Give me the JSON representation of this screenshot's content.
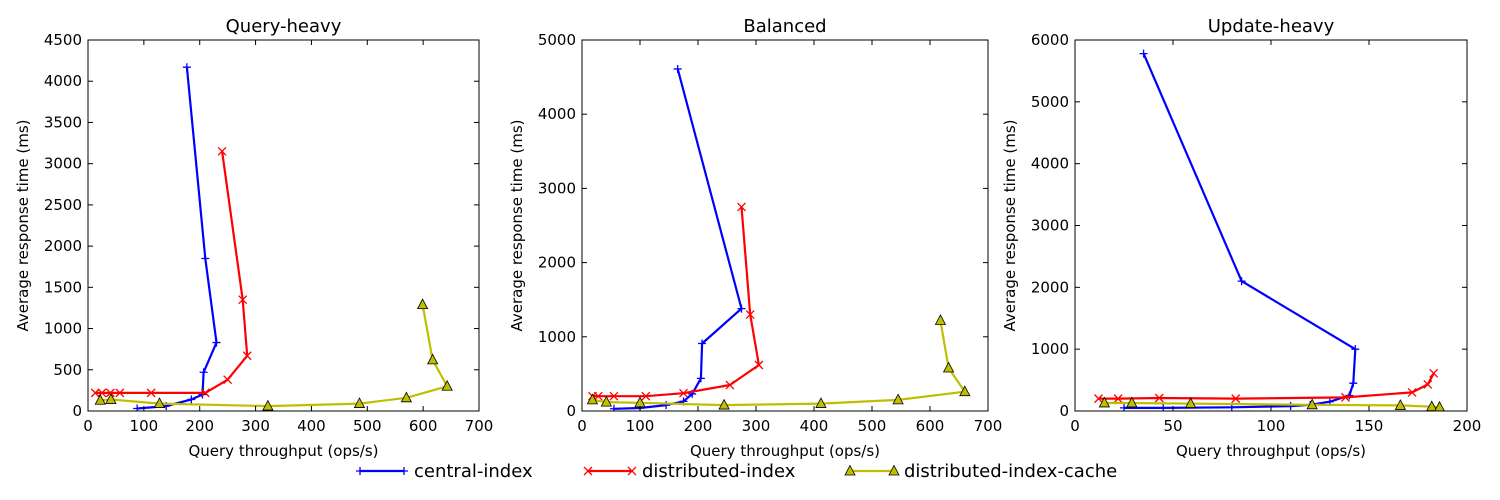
{
  "chart_data": [
    {
      "type": "line",
      "title": "Query-heavy",
      "xlabel": "Query throughput (ops/s)",
      "ylabel": "Average response time (ms)",
      "xlim": [
        0,
        700
      ],
      "ylim": [
        0,
        4500
      ],
      "xticks": [
        0,
        100,
        200,
        300,
        400,
        500,
        600,
        700
      ],
      "yticks": [
        0,
        500,
        1000,
        1500,
        2000,
        2500,
        3000,
        3500,
        4000,
        4500
      ],
      "grid": false,
      "series": [
        {
          "name": "central-index",
          "x": [
            88,
            140,
            185,
            205,
            207,
            230,
            210,
            177
          ],
          "y": [
            30,
            60,
            140,
            200,
            470,
            830,
            1850,
            4170
          ]
        },
        {
          "name": "distributed-index",
          "x": [
            13,
            25,
            40,
            57,
            113,
            210,
            250,
            285,
            277,
            240
          ],
          "y": [
            220,
            220,
            220,
            220,
            220,
            220,
            380,
            670,
            1350,
            3150
          ]
        },
        {
          "name": "distributed-index-cache",
          "x": [
            22,
            41,
            128,
            322,
            486,
            570,
            643,
            617,
            599
          ],
          "y": [
            130,
            140,
            90,
            60,
            90,
            160,
            300,
            620,
            1290
          ]
        }
      ]
    },
    {
      "type": "line",
      "title": "Balanced",
      "xlabel": "Query throughput (ops/s)",
      "ylabel": "Average response time (ms)",
      "xlim": [
        0,
        700
      ],
      "ylim": [
        0,
        5000
      ],
      "xticks": [
        0,
        100,
        200,
        300,
        400,
        500,
        600,
        700
      ],
      "yticks": [
        0,
        1000,
        2000,
        3000,
        4000,
        5000
      ],
      "grid": false,
      "series": [
        {
          "name": "central-index",
          "x": [
            55,
            100,
            145,
            175,
            190,
            205,
            207,
            275,
            165
          ],
          "y": [
            30,
            40,
            80,
            130,
            230,
            440,
            910,
            1380,
            4610
          ]
        },
        {
          "name": "distributed-index",
          "x": [
            18,
            28,
            55,
            110,
            175,
            255,
            305,
            290,
            275
          ],
          "y": [
            200,
            200,
            200,
            200,
            240,
            350,
            620,
            1300,
            2750
          ]
        },
        {
          "name": "distributed-index-cache",
          "x": [
            18,
            42,
            100,
            245,
            412,
            545,
            660,
            632,
            618
          ],
          "y": [
            150,
            120,
            110,
            80,
            100,
            150,
            260,
            580,
            1220
          ]
        }
      ]
    },
    {
      "type": "line",
      "title": "Update-heavy",
      "xlabel": "Query throughput (ops/s)",
      "ylabel": "Average response time (ms)",
      "xlim": [
        0,
        200
      ],
      "ylim": [
        0,
        6000
      ],
      "xticks": [
        0,
        50,
        100,
        150,
        200
      ],
      "yticks": [
        0,
        1000,
        2000,
        3000,
        4000,
        5000,
        6000
      ],
      "grid": false,
      "series": [
        {
          "name": "central-index",
          "x": [
            25,
            45,
            80,
            110,
            120,
            130,
            140,
            142,
            143,
            85,
            35
          ],
          "y": [
            50,
            50,
            60,
            80,
            100,
            150,
            250,
            450,
            1000,
            2100,
            5780
          ]
        },
        {
          "name": "distributed-index",
          "x": [
            12,
            22,
            43,
            82,
            138,
            172,
            180,
            183
          ],
          "y": [
            200,
            200,
            210,
            200,
            220,
            300,
            430,
            610
          ]
        },
        {
          "name": "distributed-index-cache",
          "x": [
            15,
            29,
            59,
            121,
            166,
            182,
            186
          ],
          "y": [
            130,
            130,
            120,
            100,
            90,
            70,
            60
          ]
        }
      ]
    }
  ],
  "legend": {
    "placement": "bottom-center",
    "entries": [
      {
        "label": "central-index",
        "color": "#0000ff",
        "marker": "plus"
      },
      {
        "label": "distributed-index",
        "color": "#ff0000",
        "marker": "x"
      },
      {
        "label": "distributed-index-cache",
        "color": "#bfbf00",
        "marker": "triangle"
      }
    ]
  }
}
